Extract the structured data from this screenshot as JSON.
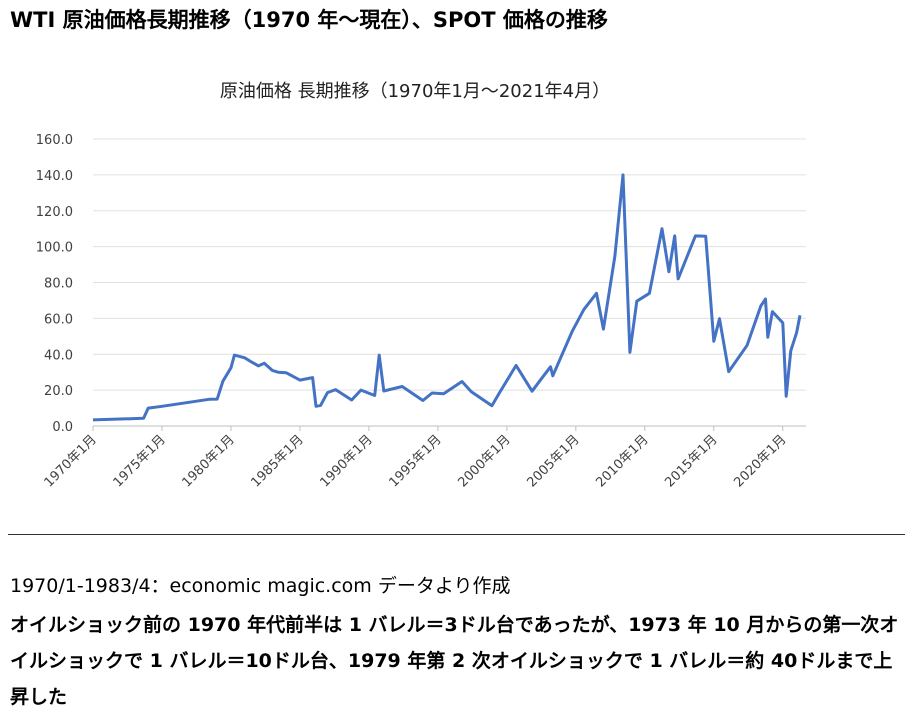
{
  "header": {
    "title": "WTI 原油価格長期推移（1970 年～現在）、SPOT 価格の推移"
  },
  "chart_data": {
    "type": "line",
    "title": "原油価格 長期推移（1970年1月～2021年4月）",
    "x": [
      "1970-01",
      "1973-09",
      "1974-01",
      "1975-01",
      "1978-06",
      "1979-01",
      "1979-06",
      "1980-01",
      "1980-04",
      "1981-01",
      "1981-06",
      "1982-01",
      "1982-06",
      "1983-01",
      "1983-06",
      "1984-01",
      "1985-01",
      "1985-12",
      "1986-03",
      "1986-07",
      "1987-01",
      "1987-08",
      "1988-10",
      "1989-06",
      "1990-06",
      "1990-10",
      "1991-02",
      "1992-06",
      "1993-12",
      "1994-08",
      "1995-06",
      "1996-10",
      "1997-06",
      "1998-12",
      "1999-06",
      "2000-09",
      "2001-11",
      "2002-06",
      "2003-03",
      "2003-05",
      "2004-10",
      "2005-08",
      "2006-07",
      "2007-01",
      "2007-11",
      "2008-06",
      "2008-12",
      "2009-06",
      "2010-05",
      "2011-04",
      "2011-10",
      "2012-03",
      "2012-06",
      "2013-09",
      "2014-06",
      "2015-01",
      "2015-06",
      "2016-02",
      "2017-06",
      "2018-06",
      "2018-10",
      "2018-12",
      "2019-04",
      "2020-01",
      "2020-04",
      "2020-08",
      "2021-01",
      "2021-04"
    ],
    "values": [
      3.4,
      4.3,
      10,
      11,
      14.9,
      15,
      25,
      32.5,
      39.5,
      38,
      36,
      33.5,
      35,
      31,
      30,
      29.7,
      25.6,
      27,
      11,
      11.5,
      18.6,
      20.3,
      14.5,
      20,
      17,
      39.5,
      19.5,
      22,
      14.2,
      18.4,
      18,
      24.8,
      19.2,
      11.3,
      17.9,
      33.8,
      19.4,
      25.5,
      33,
      28,
      53,
      65,
      74,
      54,
      94.8,
      140,
      41.1,
      69.6,
      74,
      110,
      86,
      106,
      82,
      106,
      105.8,
      47.2,
      59.8,
      30.3,
      45,
      67,
      70.8,
      49.5,
      63.8,
      57.5,
      16.6,
      42,
      52,
      61.7
    ],
    "color": "#4472c4",
    "xlim": [
      "1970-01",
      "2021-04"
    ],
    "xticks": [
      {
        "value": "1970-01",
        "label": "1970年1月"
      },
      {
        "value": "1975-01",
        "label": "1975年1月"
      },
      {
        "value": "1980-01",
        "label": "1980年1月"
      },
      {
        "value": "1985-01",
        "label": "1985年1月"
      },
      {
        "value": "1990-01",
        "label": "1990年1月"
      },
      {
        "value": "1995-01",
        "label": "1995年1月"
      },
      {
        "value": "2000-01",
        "label": "2000年1月"
      },
      {
        "value": "2005-01",
        "label": "2005年1月"
      },
      {
        "value": "2010-01",
        "label": "2010年1月"
      },
      {
        "value": "2015-01",
        "label": "2015年1月"
      },
      {
        "value": "2020-01",
        "label": "2020年1月"
      }
    ],
    "ylim": [
      0,
      160
    ],
    "yticks": [
      {
        "value": 0,
        "label": "0.0"
      },
      {
        "value": 20,
        "label": "20.0"
      },
      {
        "value": 40,
        "label": "40.0"
      },
      {
        "value": 60,
        "label": "60.0"
      },
      {
        "value": 80,
        "label": "80.0"
      },
      {
        "value": 100,
        "label": "100.0"
      },
      {
        "value": 120,
        "label": "120.0"
      },
      {
        "value": 140,
        "label": "140.0"
      },
      {
        "value": 160,
        "label": "160.0"
      }
    ],
    "grid": true
  },
  "caption": {
    "source": "1970/1-1983/4：economic magic.com データより作成",
    "text": "オイルショック前の 1970 年代前半は 1 バレル＝3ドル台であったが、1973 年 10 月からの第一次オイルショックで 1 バレル＝10ドル台、1979 年第 2 次オイルショックで 1 バレル＝約 40ドルまで上昇した"
  }
}
